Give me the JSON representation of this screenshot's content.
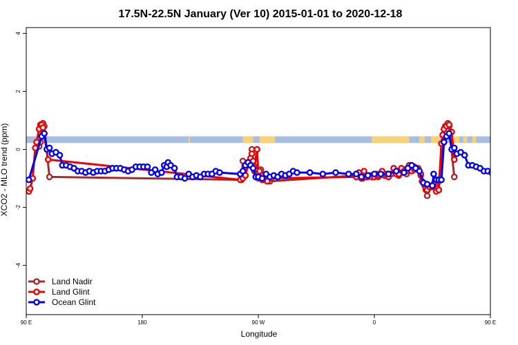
{
  "chart_data": {
    "type": "line",
    "title": "17.5N-22.5N January (Ver 10)   2015-01-01 to 2020-12-18",
    "xlabel": "Longitude",
    "ylabel": "XCO2 - MLO trend (ppm)",
    "xlim": [
      90,
      450
    ],
    "ylim": [
      -5.7,
      4.2
    ],
    "x_ticks": [
      {
        "value": 90,
        "label": "90 E"
      },
      {
        "value": 180,
        "label": "180"
      },
      {
        "value": 270,
        "label": "90 W"
      },
      {
        "value": 360,
        "label": "0"
      },
      {
        "value": 450,
        "label": "90 E"
      },
      {
        "value": 540,
        "label": "180"
      }
    ],
    "y_ticks": [
      {
        "value": 4,
        "label": "4"
      },
      {
        "value": 2,
        "label": "2"
      },
      {
        "value": 0,
        "label": "0"
      },
      {
        "value": -2,
        "label": "-2"
      },
      {
        "value": -4,
        "label": "-4"
      }
    ],
    "land_band": {
      "y_range": [
        0.22,
        0.45
      ],
      "ocean_color": "#a8bee0",
      "land_color": "#f7d27a",
      "land_segments": [
        [
          216,
          217
        ],
        [
          258,
          266
        ],
        [
          271,
          280
        ],
        [
          279,
          283
        ],
        [
          358,
          387
        ],
        [
          395,
          399
        ],
        [
          404,
          416
        ],
        [
          418,
          426
        ],
        [
          429,
          432
        ],
        [
          436,
          439
        ]
      ]
    },
    "legend_position": "bottom-left",
    "series": [
      {
        "name": "Land Nadir",
        "color": "#a52a2a",
        "points": [
          [
            100,
            0.1
          ],
          [
            101,
            0.25
          ],
          [
            102,
            0.8
          ],
          [
            103,
            0.9
          ],
          [
            104,
            0.8
          ],
          [
            108,
            -0.95
          ],
          [
            257,
            -1.05
          ],
          [
            258,
            -0.4
          ],
          [
            260,
            -0.9
          ],
          [
            262,
            -0.5
          ],
          [
            265,
            0.0
          ],
          [
            266,
            -0.4
          ],
          [
            267,
            -0.75
          ],
          [
            269,
            -0.7
          ],
          [
            270,
            -1.0
          ],
          [
            272,
            -0.7
          ],
          [
            276,
            -1.0
          ],
          [
            277,
            -1.1
          ],
          [
            279,
            -1.1
          ],
          [
            347,
            -0.9
          ],
          [
            349,
            -0.95
          ],
          [
            351,
            -1.0
          ],
          [
            352,
            -0.85
          ],
          [
            355,
            -0.95
          ],
          [
            358,
            -0.9
          ],
          [
            360,
            -0.95
          ],
          [
            362,
            -0.85
          ],
          [
            363,
            -0.95
          ],
          [
            366,
            -0.85
          ],
          [
            368,
            -0.9
          ],
          [
            370,
            -0.85
          ],
          [
            372,
            -0.85
          ],
          [
            378,
            -0.75
          ],
          [
            379,
            -0.9
          ],
          [
            380,
            -0.75
          ],
          [
            382,
            -0.8
          ],
          [
            384,
            -0.7
          ],
          [
            385,
            -0.85
          ],
          [
            387,
            -0.7
          ],
          [
            389,
            -0.65
          ],
          [
            391,
            -0.6
          ],
          [
            394,
            -0.65
          ],
          [
            396,
            -0.9
          ],
          [
            399,
            -1.25
          ],
          [
            400,
            -1.4
          ],
          [
            401,
            -1.6
          ],
          [
            404,
            -1.3
          ],
          [
            406,
            -1.2
          ],
          [
            409,
            -1.35
          ],
          [
            410,
            -1.1
          ],
          [
            413,
            0.2
          ],
          [
            414,
            0.45
          ],
          [
            415,
            0.8
          ],
          [
            417,
            0.9
          ],
          [
            418,
            0.8
          ],
          [
            422,
            -0.95
          ]
        ]
      },
      {
        "name": "Land Glint",
        "color": "#ee0000",
        "points": [
          [
            92,
            -1.45
          ],
          [
            93,
            -1.35
          ],
          [
            95,
            -1.0
          ],
          [
            97,
            0.05
          ],
          [
            98,
            0.25
          ],
          [
            100,
            0.7
          ],
          [
            101,
            0.85
          ],
          [
            102,
            0.85
          ],
          [
            103,
            0.75
          ],
          [
            107,
            -0.35
          ],
          [
            256,
            -1.05
          ],
          [
            258,
            -1.0
          ],
          [
            260,
            -0.9
          ],
          [
            262,
            -0.55
          ],
          [
            264,
            -0.3
          ],
          [
            265,
            -0.15
          ],
          [
            266,
            -0.4
          ],
          [
            267,
            -0.6
          ],
          [
            269,
            0.0
          ],
          [
            270,
            -0.8
          ],
          [
            271,
            -0.75
          ],
          [
            273,
            -1.05
          ],
          [
            275,
            -1.05
          ],
          [
            277,
            -1.1
          ],
          [
            280,
            -1.0
          ],
          [
            346,
            -0.95
          ],
          [
            348,
            -0.8
          ],
          [
            350,
            -1.0
          ],
          [
            352,
            -0.75
          ],
          [
            354,
            -0.95
          ],
          [
            356,
            -0.9
          ],
          [
            358,
            -0.95
          ],
          [
            360,
            -0.95
          ],
          [
            362,
            -0.9
          ],
          [
            364,
            -0.9
          ],
          [
            366,
            -0.75
          ],
          [
            368,
            -0.9
          ],
          [
            369,
            -0.85
          ],
          [
            371,
            -0.95
          ],
          [
            373,
            -0.85
          ],
          [
            375,
            -0.65
          ],
          [
            377,
            -0.85
          ],
          [
            379,
            -0.85
          ],
          [
            381,
            -0.65
          ],
          [
            383,
            -0.75
          ],
          [
            385,
            -0.75
          ],
          [
            387,
            -0.55
          ],
          [
            389,
            -0.75
          ],
          [
            391,
            -0.7
          ],
          [
            393,
            -0.65
          ],
          [
            396,
            -0.85
          ],
          [
            397,
            -1.1
          ],
          [
            400,
            -1.35
          ],
          [
            401,
            -1.4
          ],
          [
            403,
            -1.3
          ],
          [
            405,
            -1.3
          ],
          [
            406,
            -1.2
          ],
          [
            408,
            -1.45
          ],
          [
            410,
            -1.4
          ],
          [
            412,
            0.2
          ],
          [
            413,
            0.5
          ],
          [
            414,
            0.7
          ],
          [
            416,
            0.8
          ],
          [
            418,
            0.85
          ],
          [
            420,
            0.6
          ],
          [
            422,
            -0.35
          ]
        ]
      },
      {
        "name": "Ocean Glint",
        "color": "#0000ee",
        "points": [
          [
            92,
            -1.05
          ],
          [
            102,
            0.45
          ],
          [
            104,
            0.55
          ],
          [
            106,
            0.0
          ],
          [
            108,
            0.05
          ],
          [
            110,
            -0.15
          ],
          [
            113,
            -0.1
          ],
          [
            116,
            -0.2
          ],
          [
            118,
            -0.55
          ],
          [
            121,
            -0.55
          ],
          [
            124,
            -0.6
          ],
          [
            127,
            -0.65
          ],
          [
            130,
            -0.75
          ],
          [
            133,
            -0.75
          ],
          [
            136,
            -0.8
          ],
          [
            139,
            -0.75
          ],
          [
            142,
            -0.8
          ],
          [
            145,
            -0.75
          ],
          [
            148,
            -0.75
          ],
          [
            151,
            -0.75
          ],
          [
            154,
            -0.7
          ],
          [
            157,
            -0.65
          ],
          [
            160,
            -0.65
          ],
          [
            163,
            -0.65
          ],
          [
            166,
            -0.7
          ],
          [
            169,
            -0.75
          ],
          [
            172,
            -0.7
          ],
          [
            175,
            -0.6
          ],
          [
            178,
            -0.6
          ],
          [
            181,
            -0.6
          ],
          [
            184,
            -0.6
          ],
          [
            187,
            -0.8
          ],
          [
            190,
            -0.7
          ],
          [
            192,
            -0.85
          ],
          [
            195,
            -0.8
          ],
          [
            197,
            -0.55
          ],
          [
            199,
            -0.6
          ],
          [
            200,
            -0.45
          ],
          [
            202,
            -0.55
          ],
          [
            205,
            -0.65
          ],
          [
            207,
            -0.95
          ],
          [
            210,
            -0.95
          ],
          [
            213,
            -1.0
          ],
          [
            216,
            -0.85
          ],
          [
            219,
            -0.95
          ],
          [
            222,
            -0.9
          ],
          [
            225,
            -0.95
          ],
          [
            228,
            -0.85
          ],
          [
            231,
            -0.85
          ],
          [
            234,
            -0.85
          ],
          [
            237,
            -0.75
          ],
          [
            240,
            -0.8
          ],
          [
            256,
            -0.85
          ],
          [
            258,
            -0.75
          ],
          [
            260,
            -0.55
          ],
          [
            262,
            -0.45
          ],
          [
            264,
            -0.55
          ],
          [
            266,
            -0.65
          ],
          [
            268,
            -0.95
          ],
          [
            270,
            -0.95
          ],
          [
            273,
            -1.0
          ],
          [
            276,
            -0.85
          ],
          [
            279,
            -0.95
          ],
          [
            282,
            -0.9
          ],
          [
            285,
            -0.95
          ],
          [
            288,
            -0.85
          ],
          [
            291,
            -0.9
          ],
          [
            294,
            -0.85
          ],
          [
            297,
            -0.75
          ],
          [
            300,
            -0.8
          ],
          [
            310,
            -0.8
          ],
          [
            320,
            -0.85
          ],
          [
            330,
            -0.8
          ],
          [
            340,
            -0.85
          ],
          [
            346,
            -0.85
          ],
          [
            350,
            -0.95
          ],
          [
            355,
            -0.9
          ],
          [
            360,
            -0.85
          ],
          [
            365,
            -0.85
          ],
          [
            371,
            -0.85
          ],
          [
            377,
            -0.75
          ],
          [
            383,
            -0.8
          ],
          [
            386,
            -0.65
          ],
          [
            389,
            -0.55
          ],
          [
            392,
            -0.65
          ],
          [
            395,
            -0.75
          ],
          [
            398,
            -1.15
          ],
          [
            401,
            -1.2
          ],
          [
            405,
            -1.25
          ],
          [
            406,
            -0.85
          ],
          [
            408,
            -1.05
          ],
          [
            410,
            -1.05
          ],
          [
            412,
            -1.05
          ],
          [
            414,
            0.25
          ],
          [
            416,
            0.45
          ],
          [
            418,
            0.55
          ],
          [
            420,
            0.0
          ],
          [
            422,
            0.05
          ],
          [
            424,
            -0.15
          ],
          [
            427,
            -0.1
          ],
          [
            430,
            -0.2
          ],
          [
            433,
            -0.55
          ],
          [
            436,
            -0.55
          ],
          [
            439,
            -0.6
          ],
          [
            442,
            -0.65
          ],
          [
            445,
            -0.75
          ],
          [
            448,
            -0.75
          ],
          [
            451,
            -0.8
          ],
          [
            454,
            -0.75
          ]
        ]
      }
    ]
  }
}
